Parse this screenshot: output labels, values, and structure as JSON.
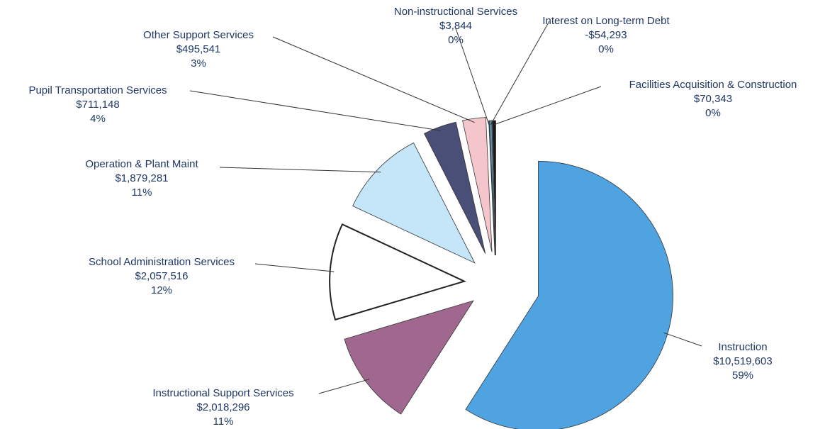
{
  "chart_data": {
    "type": "pie",
    "categories": [
      "Instruction",
      "Instructional Support Services",
      "School Administration Services",
      "Operation & Plant Maint",
      "Pupil Transportation Services",
      "Other Support Services",
      "Non-instructional Services",
      "Interest on Long-term Debt",
      "Facilities Acquisition & Construction"
    ],
    "values": [
      10519603,
      2018296,
      2057516,
      1879281,
      711148,
      495541,
      3844,
      -54293,
      70343
    ],
    "value_labels": [
      "$10,519,603",
      "$2,018,296",
      "$2,057,516",
      "$1,879,281",
      "$711,148",
      "$495,541",
      "$3,844",
      "-$54,293",
      "$70,343"
    ],
    "percent_labels": [
      "59%",
      "11%",
      "12%",
      "11%",
      "4%",
      "3%",
      "0%",
      "0%",
      "0%"
    ],
    "colors": [
      "#4fa3e0",
      "#a0688e",
      "#ffffff",
      "#c4e6f8",
      "#4a4f78",
      "#f4c6cc",
      "#9fd8e8",
      "#5a8fb0",
      "#1a1a1a"
    ]
  }
}
